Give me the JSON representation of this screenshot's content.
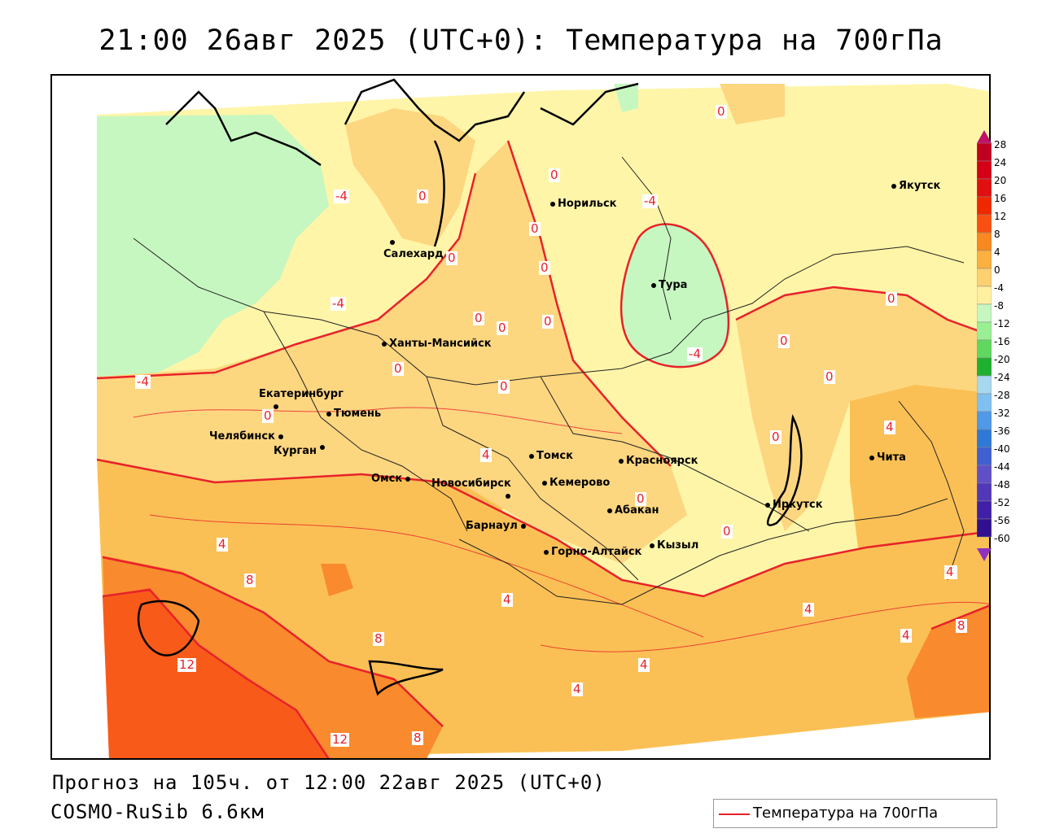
{
  "title": "21:00 26авг 2025 (UTC+0): Температура на 700гПа",
  "footer": {
    "forecast": "Прогноз на 105ч. от 12:00 22авг 2025 (UTC+0)",
    "model": "COSMO-RuSib 6.6км"
  },
  "legend": {
    "label": "Температура на 700гПа",
    "line_color": "#e8222a"
  },
  "colorbar": {
    "ticks": [
      "28",
      "24",
      "20",
      "16",
      "12",
      "8",
      "4",
      "0",
      "-4",
      "-8",
      "-12",
      "-16",
      "-20",
      "-24",
      "-28",
      "-32",
      "-36",
      "-40",
      "-44",
      "-48",
      "-52",
      "-56",
      "-60"
    ],
    "colors": [
      "#c00020",
      "#d40018",
      "#e01010",
      "#f02800",
      "#f85010",
      "#f88820",
      "#fbb040",
      "#fdd070",
      "#fff0a0",
      "#c6f7c0",
      "#9aef95",
      "#60d860",
      "#20b030",
      "#a8d8f0",
      "#80c0f0",
      "#5098e8",
      "#2e78d8",
      "#4060d0",
      "#6050c8",
      "#5038b8",
      "#4020a8",
      "#301090"
    ],
    "arrow_top_color": "#c0106a",
    "arrow_bottom_color": "#9030c0"
  },
  "cities": [
    {
      "name": "Якутск"
    },
    {
      "name": "Норильск"
    },
    {
      "name": "Салехард"
    },
    {
      "name": "Тура"
    },
    {
      "name": "Ханты-Мансийск"
    },
    {
      "name": "Екатеринбург"
    },
    {
      "name": "Тюмень"
    },
    {
      "name": "Челябинск"
    },
    {
      "name": "Курган"
    },
    {
      "name": "Омск"
    },
    {
      "name": "Новосибирск"
    },
    {
      "name": "Томск"
    },
    {
      "name": "Красноярск"
    },
    {
      "name": "Кемерово"
    },
    {
      "name": "Абакан"
    },
    {
      "name": "Барнаул"
    },
    {
      "name": "Горно-Алтайск"
    },
    {
      "name": "Кызыл"
    },
    {
      "name": "Иркутск"
    },
    {
      "name": "Чита"
    }
  ],
  "contour_labels": [
    "0",
    "-4",
    "0",
    "0",
    "-4",
    "0",
    "0",
    "0",
    "0",
    "-4",
    "0",
    "0",
    "0",
    "-4",
    "-4",
    "0",
    "0",
    "0",
    "0",
    "0",
    "4",
    "0",
    "0",
    "4",
    "4",
    "4",
    "0",
    "8",
    "4",
    "8",
    "12",
    "12",
    "8",
    "4",
    "4",
    "4",
    "4",
    "8",
    "4"
  ]
}
